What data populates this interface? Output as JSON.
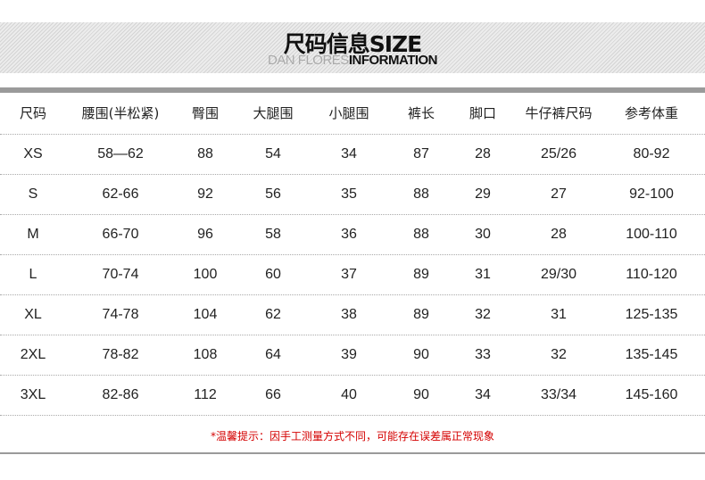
{
  "header": {
    "title": "尺码信息SIZE",
    "subtitle_light": "DAN FLORES",
    "subtitle_bold": "INFORMATION"
  },
  "table": {
    "columns": [
      "尺码",
      "腰围(半松紧)",
      "臀围",
      "大腿围",
      "小腿围",
      "裤长",
      "脚口",
      "牛仔裤尺码",
      "参考体重"
    ],
    "rows": [
      [
        "XS",
        "58—62",
        "88",
        "54",
        "34",
        "87",
        "28",
        "25/26",
        "80-92"
      ],
      [
        "S",
        "62-66",
        "92",
        "56",
        "35",
        "88",
        "29",
        "27",
        "92-100"
      ],
      [
        "M",
        "66-70",
        "96",
        "58",
        "36",
        "88",
        "30",
        "28",
        "100-110"
      ],
      [
        "L",
        "70-74",
        "100",
        "60",
        "37",
        "89",
        "31",
        "29/30",
        "110-120"
      ],
      [
        "XL",
        "74-78",
        "104",
        "62",
        "38",
        "89",
        "32",
        "31",
        "125-135"
      ],
      [
        "2XL",
        "78-82",
        "108",
        "64",
        "39",
        "90",
        "33",
        "32",
        "135-145"
      ],
      [
        "3XL",
        "82-86",
        "112",
        "66",
        "40",
        "90",
        "34",
        "33/34",
        "145-160"
      ]
    ]
  },
  "note": "*温馨提示：因手工测量方式不同，可能存在误差属正常现象",
  "colors": {
    "note": "#d40000",
    "bar": "#9a9a9a"
  }
}
